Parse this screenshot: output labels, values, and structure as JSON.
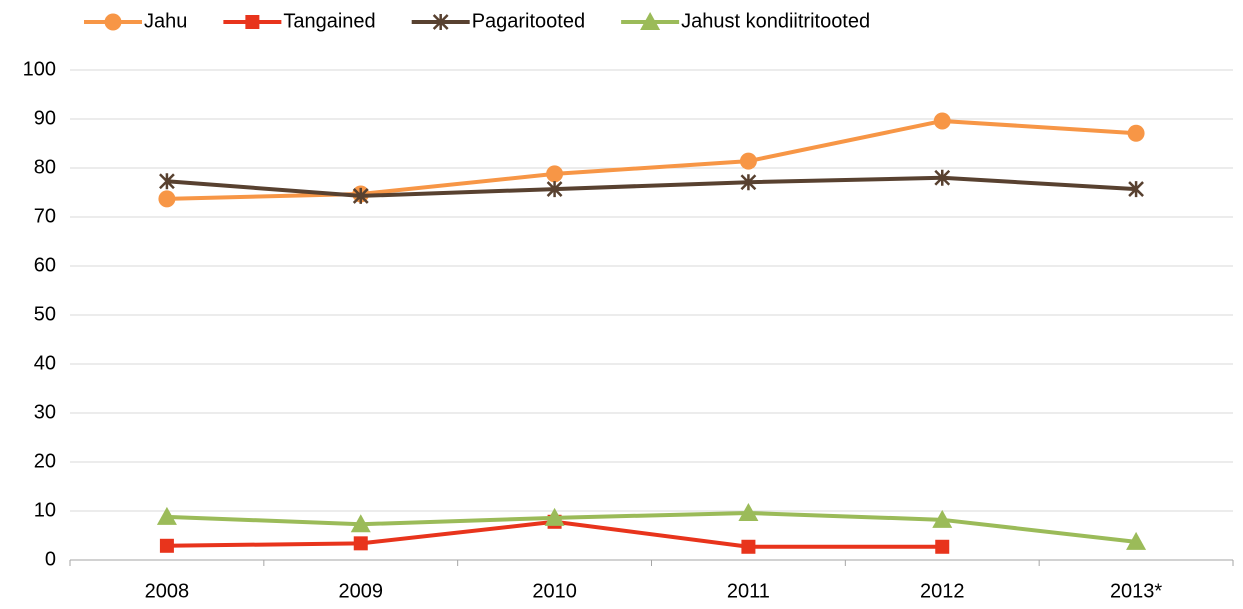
{
  "chart_data": {
    "type": "line",
    "categories": [
      "2008",
      "2009",
      "2010",
      "2011",
      "2012",
      "2013*"
    ],
    "series": [
      {
        "name": "Jahu",
        "color": "#f79646",
        "marker": "circle",
        "values": [
          73.7,
          74.7,
          78.8,
          81.4,
          89.6,
          87.1
        ]
      },
      {
        "name": "Tangained",
        "color": "#e8341c",
        "marker": "square",
        "values": [
          2.9,
          3.4,
          7.8,
          2.7,
          2.7,
          null
        ]
      },
      {
        "name": "Pagaritooted",
        "color": "#584130",
        "marker": "star",
        "values": [
          77.3,
          74.3,
          75.7,
          77.1,
          78.0,
          75.7
        ]
      },
      {
        "name": "Jahust kondiitritooted",
        "color": "#9bbb59",
        "marker": "triangle",
        "values": [
          8.8,
          7.3,
          8.6,
          9.6,
          8.2,
          3.7
        ]
      }
    ],
    "ylim": [
      0,
      100
    ],
    "yticks": [
      0,
      10,
      20,
      30,
      40,
      50,
      60,
      70,
      80,
      90,
      100
    ],
    "grid": true,
    "legend": "top"
  }
}
